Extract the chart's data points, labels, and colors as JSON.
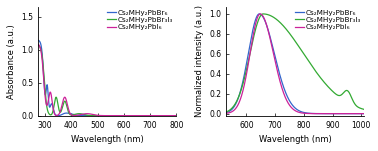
{
  "left_panel": {
    "xlabel": "Wavelength (nm)",
    "ylabel": "Absorbance (a.u.)",
    "xlim": [
      275,
      800
    ],
    "ylim": [
      0,
      1.65
    ],
    "yticks": [
      0.0,
      0.5,
      1.0,
      1.5
    ],
    "xticks": [
      300,
      400,
      500,
      600,
      700,
      800
    ],
    "series": [
      {
        "label": "Cs₂MHy₂PbBr₆",
        "color": "#3366cc"
      },
      {
        "label": "Cs₂MHy₂PbBr₃I₃",
        "color": "#33aa33"
      },
      {
        "label": "Cs₂MHy₂PbI₆",
        "color": "#cc2299"
      }
    ]
  },
  "right_panel": {
    "xlabel": "Wavelength (nm)",
    "ylabel": "Normalized intensity (a.u.)",
    "xlim": [
      530,
      1010
    ],
    "ylim": [
      -0.02,
      1.07
    ],
    "yticks": [
      0.0,
      0.2,
      0.4,
      0.6,
      0.8,
      1.0
    ],
    "xticks": [
      600,
      700,
      800,
      900,
      1000
    ],
    "series": [
      {
        "label": "Cs₂MHy₂PbBr₆",
        "color": "#3366cc"
      },
      {
        "label": "Cs₂MHy₂PbBr₃I₃",
        "color": "#33aa33"
      },
      {
        "label": "Cs₂MHy₂PbI₆",
        "color": "#cc2299"
      }
    ]
  },
  "background_color": "#ffffff",
  "font_size": 6.0,
  "legend_font_size": 5.2,
  "line_width": 0.9
}
